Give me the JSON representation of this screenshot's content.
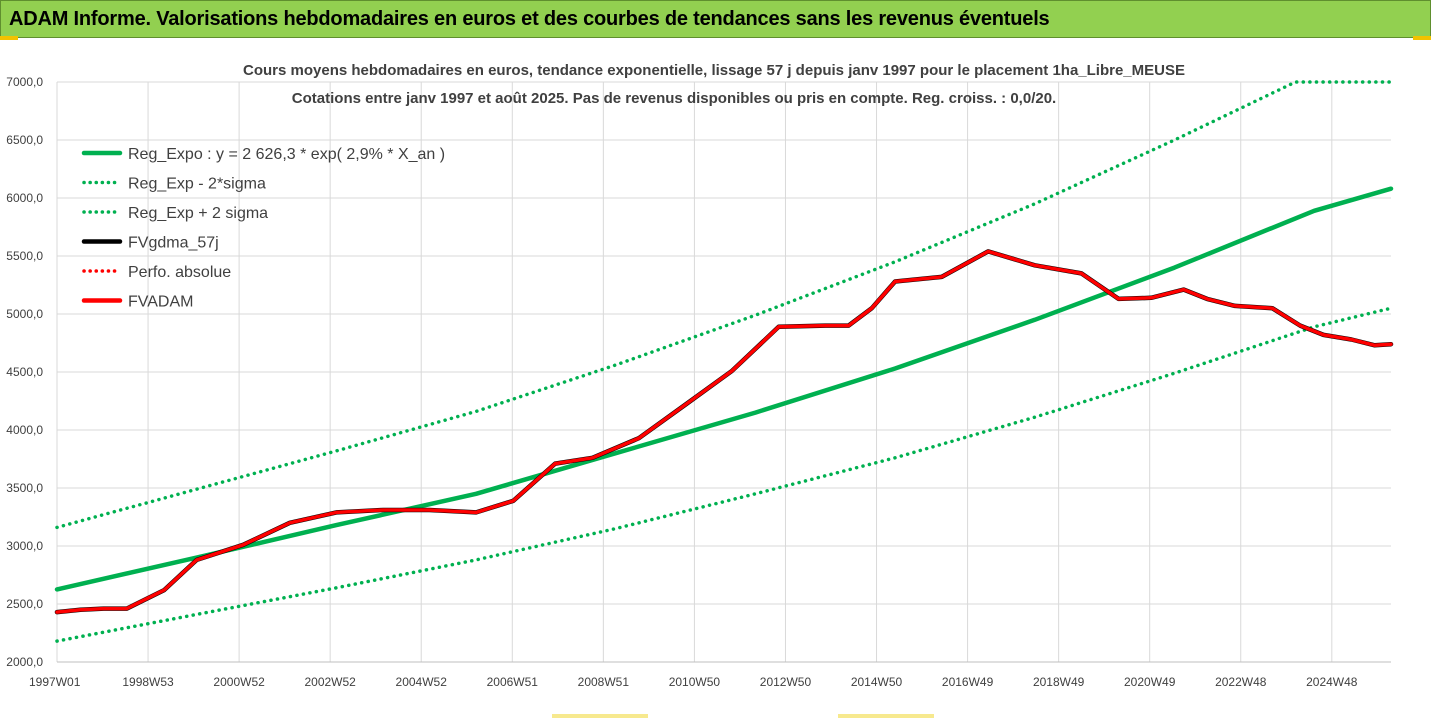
{
  "banner": {
    "title": "ADAM Informe. Valorisations hebdomadaires en euros et des courbes de tendances sans les revenus éventuels"
  },
  "colors": {
    "banner_bg": "#92d050",
    "green": "#00b050",
    "red": "#ff0000",
    "black": "#000000",
    "grid": "#d9d9d9"
  },
  "chart_data": {
    "type": "line",
    "title": "Cours moyens hebdomadaires en euros, tendance exponentielle, lissage 57 j depuis janv 1997 pour le placement 1ha_Libre_MEUSE",
    "subtitle": "Cotations entre janv 1997 et août 2025. Pas de revenus disponibles ou pris en compte. Reg. croiss. : 0,0/20.",
    "xlabel": "",
    "ylabel": "",
    "x_ticks": [
      "1997W01",
      "1998W53",
      "2000W52",
      "2002W52",
      "2004W52",
      "2006W51",
      "2008W51",
      "2010W50",
      "2012W50",
      "2014W50",
      "2016W49",
      "2018W49",
      "2020W49",
      "2022W48",
      "2024W48"
    ],
    "x_range": [
      1997.0,
      2025.65
    ],
    "y_ticks": [
      "2000,0",
      "2500,0",
      "3000,0",
      "3500,0",
      "4000,0",
      "4500,0",
      "5000,0",
      "5500,0",
      "6000,0",
      "6500,0",
      "7000,0"
    ],
    "ylim": [
      2000,
      7000
    ],
    "grid": true,
    "legend_position": "top-left",
    "series": [
      {
        "name": "Reg_Expo : y = 2 626,3 * exp( 2,9% *  X_an )",
        "style": "solid",
        "color": "#00b050",
        "x": [
          1997.0,
          2000.0,
          2003.0,
          2006.0,
          2009.0,
          2012.0,
          2015.0,
          2018.0,
          2021.0,
          2024.0,
          2025.65
        ],
        "values": [
          2626,
          2900,
          3180,
          3450,
          3800,
          4150,
          4530,
          4950,
          5400,
          5890,
          6080
        ]
      },
      {
        "name": "Reg_Exp - 2*sigma",
        "style": "dotted",
        "color": "#00b050",
        "x": [
          1997.0,
          2000.0,
          2003.0,
          2006.0,
          2009.0,
          2012.0,
          2015.0,
          2018.0,
          2021.0,
          2024.0,
          2025.65
        ],
        "values": [
          2180,
          2410,
          2640,
          2880,
          3150,
          3450,
          3760,
          4110,
          4490,
          4890,
          5050
        ]
      },
      {
        "name": "Reg_Exp + 2 sigma",
        "style": "dotted",
        "color": "#00b050",
        "x": [
          1997.0,
          2000.0,
          2003.0,
          2006.0,
          2009.0,
          2012.0,
          2015.0,
          2018.0,
          2021.0,
          2023.6,
          2025.65
        ],
        "values": [
          3160,
          3490,
          3820,
          4160,
          4560,
          4990,
          5450,
          5950,
          6500,
          7000,
          7000
        ]
      },
      {
        "name": "FVgdma_57j",
        "style": "solid",
        "color": "#000000",
        "x": [
          1997.0,
          1997.5,
          1998.0,
          1998.5,
          1999.3,
          2000.0,
          2001.0,
          2002.0,
          2003.0,
          2004.0,
          2005.0,
          2006.0,
          2006.8,
          2007.7,
          2008.5,
          2009.5,
          2010.5,
          2011.5,
          2012.5,
          2013.5,
          2014.0,
          2014.5,
          2015.0,
          2016.0,
          2017.0,
          2018.0,
          2019.0,
          2019.8,
          2020.5,
          2021.2,
          2021.7,
          2022.3,
          2023.1,
          2023.7,
          2024.2,
          2024.8,
          2025.3,
          2025.65
        ],
        "values": [
          2430,
          2450,
          2460,
          2460,
          2620,
          2880,
          3010,
          3200,
          3290,
          3310,
          3310,
          3290,
          3390,
          3710,
          3760,
          3930,
          4220,
          4510,
          4890,
          4900,
          4900,
          5050,
          5280,
          5320,
          5540,
          5420,
          5350,
          5130,
          5140,
          5210,
          5130,
          5070,
          5050,
          4900,
          4820,
          4780,
          4730,
          4740
        ]
      },
      {
        "name": "Perfo. absolue",
        "style": "dotted",
        "color": "#ff0000",
        "x": [],
        "values": []
      },
      {
        "name": "FVADAM",
        "style": "solid",
        "color": "#ff0000",
        "x": [
          1997.0,
          1997.5,
          1998.0,
          1998.5,
          1999.3,
          2000.0,
          2001.0,
          2002.0,
          2003.0,
          2004.0,
          2005.0,
          2006.0,
          2006.8,
          2007.7,
          2008.5,
          2009.5,
          2010.5,
          2011.5,
          2012.5,
          2013.5,
          2014.0,
          2014.5,
          2015.0,
          2016.0,
          2017.0,
          2018.0,
          2019.0,
          2019.8,
          2020.5,
          2021.2,
          2021.7,
          2022.3,
          2023.1,
          2023.7,
          2024.2,
          2024.8,
          2025.3,
          2025.65
        ],
        "values": [
          2430,
          2450,
          2460,
          2460,
          2620,
          2880,
          3010,
          3200,
          3290,
          3310,
          3310,
          3290,
          3390,
          3710,
          3760,
          3930,
          4220,
          4510,
          4890,
          4900,
          4900,
          5050,
          5280,
          5320,
          5540,
          5420,
          5350,
          5130,
          5140,
          5210,
          5130,
          5070,
          5050,
          4900,
          4820,
          4780,
          4730,
          4740
        ]
      }
    ]
  }
}
